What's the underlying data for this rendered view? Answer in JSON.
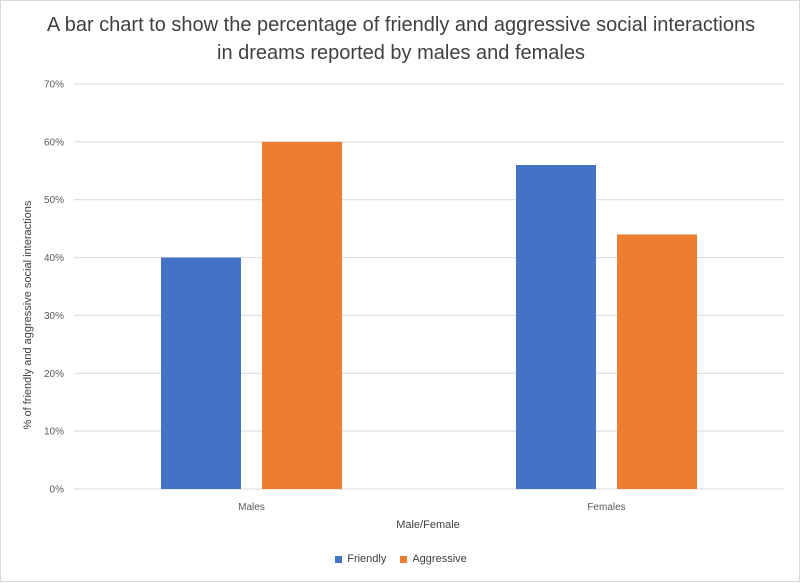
{
  "chart_data": {
    "type": "bar",
    "title": "A bar chart to show the percentage of friendly and aggressive social interactions in dreams reported by males and females",
    "xlabel": "Male/Female",
    "ylabel": "% of friendly and aggressive social interactions",
    "categories": [
      "Males",
      "Females"
    ],
    "series": [
      {
        "name": "Friendly",
        "values": [
          40,
          56
        ],
        "color": "#4472C4"
      },
      {
        "name": "Aggressive",
        "values": [
          60,
          44
        ],
        "color": "#ED7D31"
      }
    ],
    "ylim": [
      0,
      70
    ],
    "yticks": [
      "0%",
      "10%",
      "20%",
      "30%",
      "40%",
      "50%",
      "60%",
      "70%"
    ],
    "grid": true,
    "legend_position": "bottom"
  }
}
